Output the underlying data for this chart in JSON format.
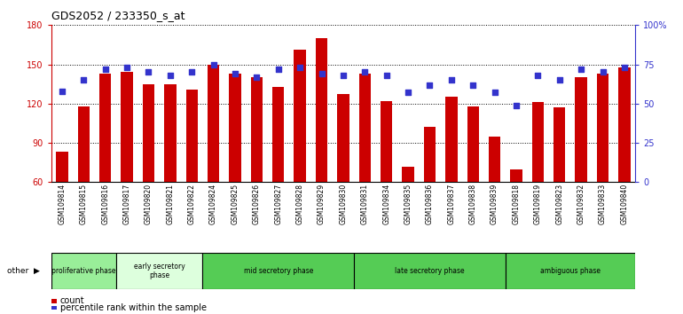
{
  "title": "GDS2052 / 233350_s_at",
  "samples": [
    "GSM109814",
    "GSM109815",
    "GSM109816",
    "GSM109817",
    "GSM109820",
    "GSM109821",
    "GSM109822",
    "GSM109824",
    "GSM109825",
    "GSM109826",
    "GSM109827",
    "GSM109828",
    "GSM109829",
    "GSM109830",
    "GSM109831",
    "GSM109834",
    "GSM109835",
    "GSM109836",
    "GSM109837",
    "GSM109838",
    "GSM109839",
    "GSM109818",
    "GSM109819",
    "GSM109823",
    "GSM109832",
    "GSM109833",
    "GSM109840"
  ],
  "counts": [
    83,
    118,
    143,
    144,
    135,
    135,
    131,
    150,
    143,
    140,
    133,
    161,
    170,
    127,
    143,
    122,
    72,
    102,
    125,
    118,
    95,
    70,
    121,
    117,
    140,
    143,
    148
  ],
  "percentile": [
    58,
    65,
    72,
    73,
    70,
    68,
    70,
    75,
    69,
    67,
    72,
    73,
    69,
    68,
    70,
    68,
    57,
    62,
    65,
    62,
    57,
    49,
    68,
    65,
    72,
    70,
    73
  ],
  "ylim_left": [
    60,
    180
  ],
  "ylim_right": [
    0,
    100
  ],
  "yticks_left": [
    60,
    90,
    120,
    150,
    180
  ],
  "yticks_right": [
    0,
    25,
    50,
    75,
    100
  ],
  "bar_color": "#cc0000",
  "dot_color": "#3333cc",
  "left_axis_color": "#cc0000",
  "right_axis_color": "#3333cc",
  "phase_info": [
    {
      "label": "proliferative phase",
      "start": 0,
      "end": 3,
      "color": "#99ee99"
    },
    {
      "label": "early secretory\nphase",
      "start": 3,
      "end": 7,
      "color": "#ddffdd"
    },
    {
      "label": "mid secretory phase",
      "start": 7,
      "end": 14,
      "color": "#55cc55"
    },
    {
      "label": "late secretory phase",
      "start": 14,
      "end": 21,
      "color": "#55cc55"
    },
    {
      "label": "ambiguous phase",
      "start": 21,
      "end": 27,
      "color": "#55cc55"
    }
  ]
}
